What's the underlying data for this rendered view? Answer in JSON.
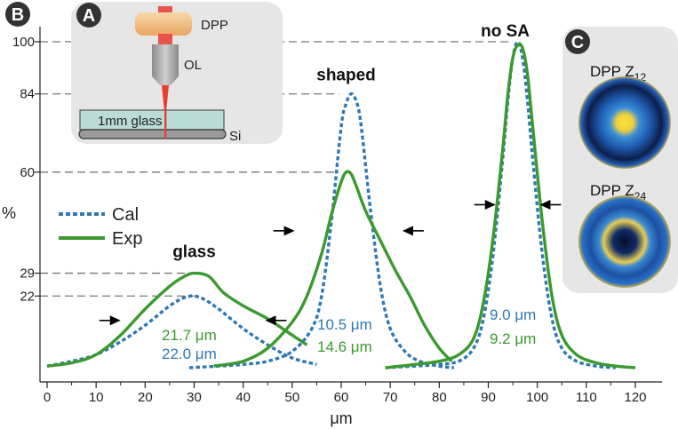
{
  "chart_data": {
    "type": "line",
    "xlabel": "μm",
    "ylabel": "%",
    "xlim": [
      0,
      122
    ],
    "ylim": [
      -2,
      102
    ],
    "x_ticks": [
      0,
      10,
      20,
      30,
      40,
      50,
      60,
      70,
      80,
      90,
      100,
      110,
      120
    ],
    "x_tick_labels": [
      "0",
      "10",
      "20",
      "30",
      "40",
      "50",
      "60",
      "70",
      "80",
      "90",
      "100",
      "110",
      "120"
    ],
    "y_ticks": [
      100,
      84,
      60,
      29,
      22
    ],
    "y_tick_labels": [
      "100",
      "84",
      "60",
      "29",
      "22"
    ],
    "legend": {
      "position": "center-left",
      "entries": [
        "Cal",
        "Exp"
      ]
    },
    "series": [
      {
        "name": "Cal",
        "group": "glass",
        "style": "dotted",
        "color": "#2f78b4",
        "x": [
          0,
          5,
          10,
          15,
          20,
          25,
          28,
          30,
          32,
          35,
          40,
          45,
          50,
          55
        ],
        "y": [
          0.5,
          2,
          4,
          8,
          13,
          19,
          21.5,
          22,
          21,
          18,
          12,
          7,
          3,
          1
        ]
      },
      {
        "name": "Exp",
        "group": "glass",
        "style": "solid",
        "color": "#3a9a2e",
        "x": [
          0,
          5,
          10,
          15,
          20,
          25,
          28,
          30,
          33,
          36,
          40,
          45,
          50,
          53
        ],
        "y": [
          0.5,
          1.5,
          4,
          10,
          18,
          25,
          28,
          29,
          28,
          23,
          19,
          15,
          10,
          7
        ]
      },
      {
        "name": "Cal",
        "group": "shaped",
        "style": "dotted",
        "color": "#2f78b4",
        "x": [
          29,
          35,
          40,
          45,
          50,
          54,
          56,
          58,
          60,
          61,
          62,
          63,
          64,
          66,
          68,
          70,
          73,
          76,
          80,
          83
        ],
        "y": [
          0,
          0.5,
          1,
          2,
          5,
          12,
          22,
          45,
          74,
          81,
          84,
          82,
          75,
          48,
          25,
          12,
          5,
          2,
          0.5,
          0
        ]
      },
      {
        "name": "Exp",
        "group": "shaped",
        "style": "solid",
        "color": "#3a9a2e",
        "x": [
          34,
          40,
          45,
          50,
          53,
          56,
          58,
          60,
          61,
          62,
          63,
          65,
          68,
          71,
          74,
          77,
          80,
          82.5
        ],
        "y": [
          0.5,
          2,
          6,
          14,
          22,
          35,
          47,
          57,
          60,
          59.5,
          56,
          48,
          39,
          30,
          22,
          13,
          6,
          2
        ]
      },
      {
        "name": "Cal",
        "group": "no SA",
        "style": "dotted",
        "color": "#2f78b4",
        "x": [
          69,
          75,
          80,
          84,
          87,
          89,
          91,
          93,
          94,
          95,
          96,
          97,
          98,
          99,
          101,
          103,
          105,
          108,
          112,
          116
        ],
        "y": [
          0,
          0.5,
          1,
          2,
          6,
          15,
          35,
          65,
          82,
          95,
          100,
          95,
          82,
          65,
          35,
          15,
          6,
          2,
          0.5,
          0
        ]
      },
      {
        "name": "Exp",
        "group": "no SA",
        "style": "solid",
        "color": "#3a9a2e",
        "x": [
          69,
          75,
          80,
          84,
          87,
          89,
          91,
          93,
          94,
          95,
          96,
          97,
          98,
          99,
          101,
          103,
          105,
          108,
          112,
          116,
          120
        ],
        "y": [
          0,
          1,
          2,
          4,
          9,
          20,
          40,
          68,
          84,
          95,
          99,
          98,
          90,
          75,
          45,
          22,
          10,
          4,
          1.5,
          0.5,
          0
        ]
      }
    ],
    "peak_labels": [
      {
        "text": "glass",
        "x": 30,
        "y": 29
      },
      {
        "text": "shaped",
        "x": 61,
        "y": 84
      },
      {
        "text": "no SA",
        "x": 96,
        "y": 100
      }
    ],
    "fwhm_labels": [
      {
        "exp": "21.7 μm",
        "cal": "22.0 μm"
      },
      {
        "cal": "10.5 μm",
        "exp": "14.6 μm"
      },
      {
        "cal": "9.0 μm",
        "exp": "9.2 μm"
      }
    ],
    "fwhm_arrows": [
      {
        "x_left": 15,
        "x_right": 44.5,
        "y": 14.5
      },
      {
        "x_left": 50.5,
        "x_right": 72.5,
        "y": 42
      },
      {
        "x_left": 91.5,
        "x_right": 100.5,
        "y": 50
      }
    ],
    "panels": [
      {
        "letter": "B"
      },
      {
        "letter": "A",
        "labels": [
          "DPP",
          "OL",
          "1mm glass",
          "Si"
        ]
      },
      {
        "letter": "C",
        "labels": [
          "DPP Z",
          "12",
          "DPP Z",
          "24"
        ]
      }
    ]
  }
}
